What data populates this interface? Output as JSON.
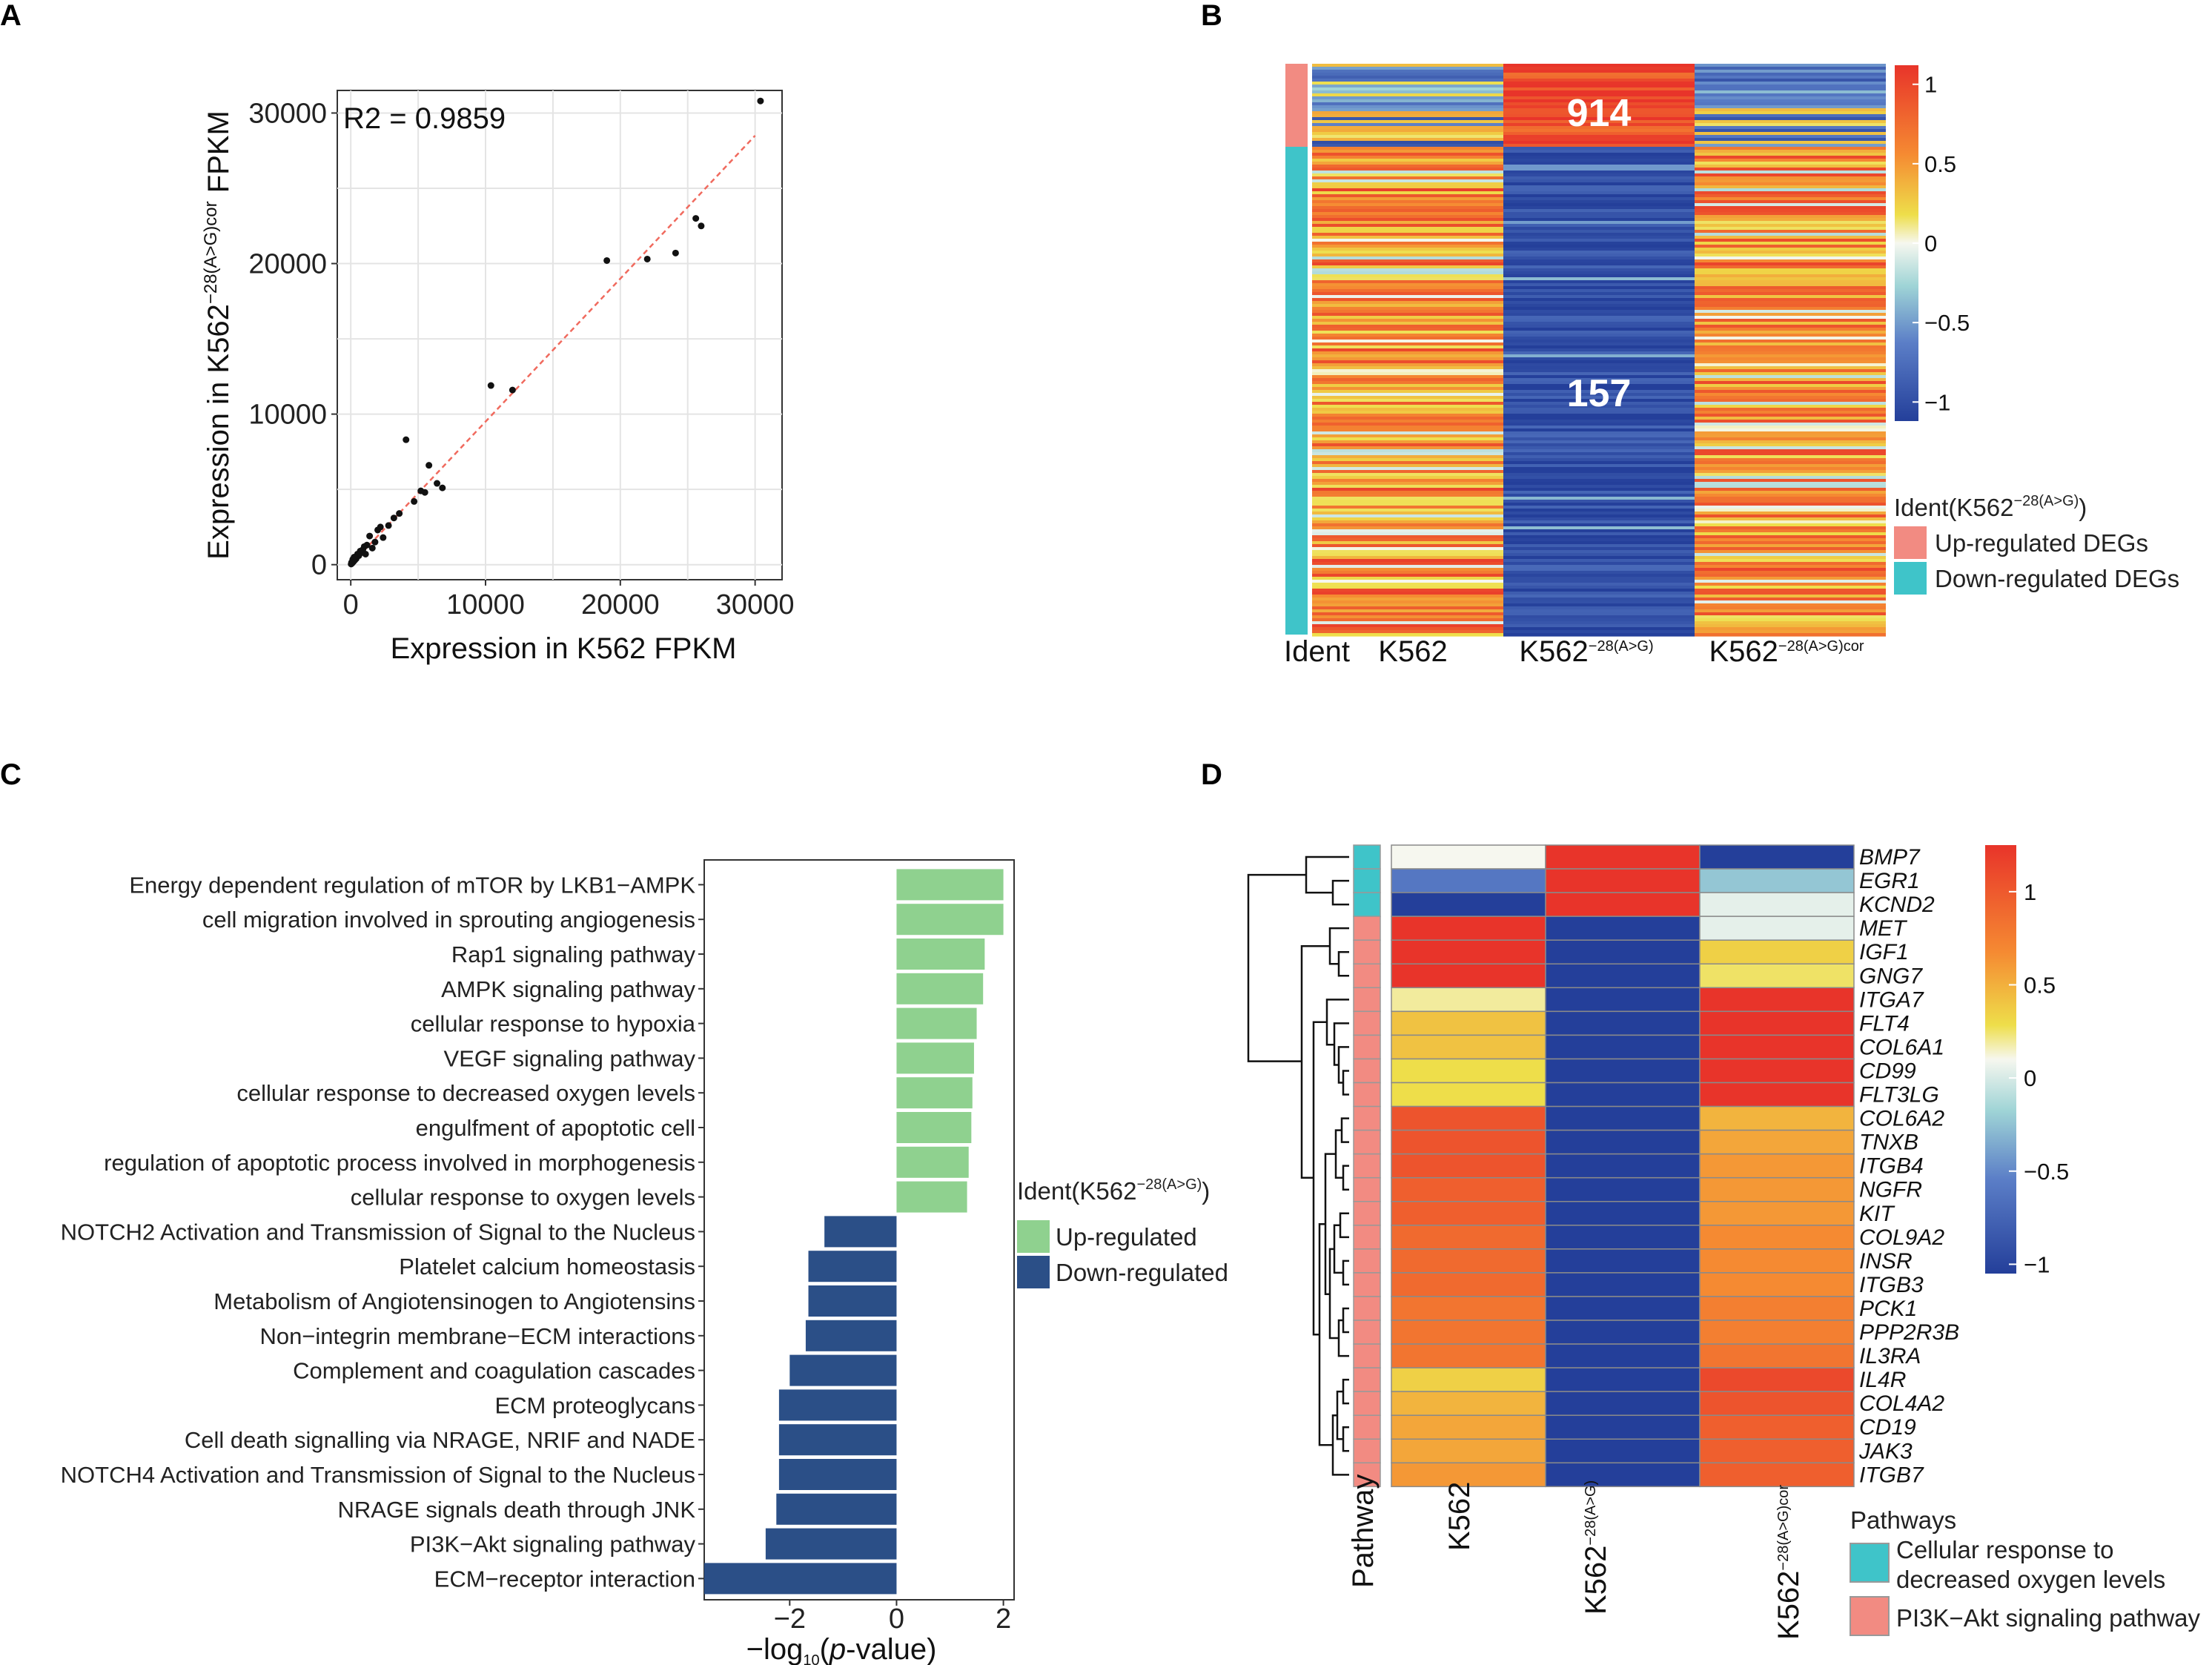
{
  "panel_labels": [
    "A",
    "B",
    "C",
    "D"
  ],
  "chart_data": [
    {
      "panel": "A",
      "type": "scatter",
      "xlabel": "Expression in K562 FPKM",
      "ylabel_prefix": "Expression in K562",
      "ylabel_sup": "−28(A>G)cor",
      "ylabel_suffix": " FPKM",
      "annotation": "R2 = 0.9859",
      "xlim": [
        -1000,
        32000
      ],
      "ylim": [
        -1000,
        31500
      ],
      "xticks": [
        0,
        10000,
        20000,
        30000
      ],
      "yticks": [
        0,
        10000,
        20000,
        30000
      ],
      "tick_labels": [
        "0",
        "10000",
        "20000",
        "30000"
      ],
      "fit_line": {
        "x": [
          0,
          30000
        ],
        "y": [
          0,
          28500
        ]
      },
      "points": [
        [
          30400,
          30800
        ],
        [
          25600,
          23000
        ],
        [
          26000,
          22500
        ],
        [
          24100,
          20700
        ],
        [
          22000,
          20300
        ],
        [
          19000,
          20200
        ],
        [
          10400,
          11900
        ],
        [
          12000,
          11600
        ],
        [
          4100,
          8300
        ],
        [
          5800,
          6600
        ],
        [
          6400,
          5400
        ],
        [
          6800,
          5100
        ],
        [
          5500,
          4800
        ],
        [
          5200,
          4900
        ],
        [
          4700,
          4200
        ],
        [
          3200,
          3100
        ],
        [
          2800,
          2600
        ],
        [
          2200,
          2500
        ],
        [
          2000,
          2300
        ],
        [
          1800,
          1500
        ],
        [
          1400,
          1900
        ],
        [
          1200,
          1300
        ],
        [
          1000,
          1200
        ],
        [
          900,
          1000
        ],
        [
          800,
          800
        ],
        [
          700,
          900
        ],
        [
          600,
          600
        ],
        [
          500,
          700
        ],
        [
          400,
          400
        ],
        [
          300,
          300
        ],
        [
          250,
          500
        ],
        [
          200,
          200
        ],
        [
          150,
          350
        ],
        [
          100,
          100
        ],
        [
          60,
          150
        ],
        [
          30,
          40
        ],
        [
          1600,
          1100
        ],
        [
          2400,
          1800
        ],
        [
          3600,
          3400
        ],
        [
          1100,
          700
        ]
      ]
    },
    {
      "panel": "B",
      "type": "heatmap",
      "columns": [
        "K562",
        "K562",
        "K562"
      ],
      "column_sups": [
        "",
        "−28(A>G)",
        "−28(A>G)cor"
      ],
      "row_annotation_label": "Ident",
      "group_counts": [
        "914",
        "157"
      ],
      "colorbar_ticks": [
        "1",
        "0.5",
        "0",
        "−0.5",
        "−1"
      ],
      "colorbar_values": [
        1,
        0.5,
        0,
        -0.5,
        -1
      ],
      "legend_title": "Ident(K562",
      "legend_title_sup": "−28(A>G)",
      "legend_items": [
        {
          "label": "Up-regulated DEGs",
          "color": "#f28b82"
        },
        {
          "label": "Down-regulated DEGs",
          "color": "#3fc4c9"
        }
      ]
    },
    {
      "panel": "C",
      "type": "bar",
      "orientation": "horizontal",
      "xlabel_prefix": "−log",
      "xlabel_sub": "10",
      "xlabel_mid": "(",
      "xlabel_ital": "p",
      "xlabel_suffix": "-value)",
      "xlim": [
        -3.6,
        2.2
      ],
      "xticks": [
        -2,
        0,
        2
      ],
      "xtick_labels": [
        "−2",
        "0",
        "2"
      ],
      "legend_title": "Ident(K562",
      "legend_title_sup": "−28(A>G)",
      "legend_title_close": ")",
      "series": [
        {
          "name": "Up-regulated",
          "color": "#8fd18f"
        },
        {
          "name": "Down-regulated",
          "color": "#2b4f87"
        }
      ],
      "categories": [
        "Energy dependent regulation of mTOR by LKB1−AMPK",
        "cell migration involved in sprouting angiogenesis",
        "Rap1 signaling pathway",
        "AMPK signaling pathway",
        "cellular response to hypoxia",
        "VEGF signaling pathway",
        "cellular response to decreased oxygen levels",
        "engulfment of apoptotic cell",
        "regulation of apoptotic process involved in morphogenesis",
        "cellular response to oxygen levels",
        "NOTCH2 Activation and Transmission of Signal to the Nucleus",
        "Platelet calcium homeostasis",
        "Metabolism of Angiotensinogen to Angiotensins",
        "Non−integrin membrane−ECM interactions",
        "Complement and coagulation cascades",
        "ECM proteoglycans",
        "Cell death signalling via NRAGE, NRIF and NADE",
        "NOTCH4 Activation and Transmission of Signal to the Nucleus",
        "NRAGE signals death through JNK",
        "PI3K−Akt signaling pathway",
        "ECM−receptor interaction"
      ],
      "values": [
        2.0,
        2.0,
        1.65,
        1.62,
        1.5,
        1.45,
        1.42,
        1.4,
        1.35,
        1.32,
        -1.35,
        -1.65,
        -1.65,
        -1.7,
        -2.0,
        -2.2,
        -2.2,
        -2.2,
        -2.25,
        -2.45,
        -3.6
      ],
      "groups": [
        "up",
        "up",
        "up",
        "up",
        "up",
        "up",
        "up",
        "up",
        "up",
        "up",
        "down",
        "down",
        "down",
        "down",
        "down",
        "down",
        "down",
        "down",
        "down",
        "down",
        "down"
      ]
    },
    {
      "panel": "D",
      "type": "heatmap",
      "columns": [
        "K562",
        "K562",
        "K562"
      ],
      "column_sups": [
        "",
        "−28(A>G)",
        "−28(A>G)cor"
      ],
      "row_annotation_label": "Pathway",
      "genes": [
        "BMP7",
        "EGR1",
        "KCND2",
        "MET",
        "IGF1",
        "GNG7",
        "ITGA7",
        "FLT4",
        "COL6A1",
        "CD99",
        "FLT3LG",
        "COL6A2",
        "TNXB",
        "ITGB4",
        "NGFR",
        "KIT",
        "COL9A2",
        "INSR",
        "ITGB3",
        "PCK1",
        "PPP2R3B",
        "IL3RA",
        "IL4R",
        "COL4A2",
        "CD19",
        "JAK3",
        "ITGB7"
      ],
      "pathway": [
        "oxy",
        "oxy",
        "oxy",
        "pi3k",
        "pi3k",
        "pi3k",
        "pi3k",
        "pi3k",
        "pi3k",
        "pi3k",
        "pi3k",
        "pi3k",
        "pi3k",
        "pi3k",
        "pi3k",
        "pi3k",
        "pi3k",
        "pi3k",
        "pi3k",
        "pi3k",
        "pi3k",
        "pi3k",
        "pi3k",
        "pi3k",
        "pi3k",
        "pi3k",
        "pi3k"
      ],
      "values": [
        [
          0.0,
          1.1,
          -1.0
        ],
        [
          -0.6,
          1.1,
          -0.3
        ],
        [
          -1.0,
          1.1,
          -0.05
        ],
        [
          1.1,
          -1.0,
          -0.05
        ],
        [
          1.1,
          -1.0,
          0.35
        ],
        [
          1.1,
          -1.0,
          0.25
        ],
        [
          0.15,
          -1.0,
          1.05
        ],
        [
          0.4,
          -1.0,
          1.05
        ],
        [
          0.4,
          -1.0,
          1.05
        ],
        [
          0.3,
          -1.0,
          1.05
        ],
        [
          0.3,
          -1.0,
          1.05
        ],
        [
          0.85,
          -1.0,
          0.45
        ],
        [
          0.85,
          -1.0,
          0.5
        ],
        [
          0.85,
          -1.0,
          0.55
        ],
        [
          0.8,
          -1.0,
          0.55
        ],
        [
          0.8,
          -1.0,
          0.55
        ],
        [
          0.75,
          -1.0,
          0.6
        ],
        [
          0.75,
          -1.0,
          0.6
        ],
        [
          0.75,
          -1.0,
          0.6
        ],
        [
          0.7,
          -1.0,
          0.65
        ],
        [
          0.7,
          -1.0,
          0.65
        ],
        [
          0.7,
          -1.0,
          0.7
        ],
        [
          0.35,
          -1.0,
          0.9
        ],
        [
          0.45,
          -1.0,
          0.85
        ],
        [
          0.5,
          -1.0,
          0.8
        ],
        [
          0.5,
          -1.0,
          0.8
        ],
        [
          0.55,
          -1.0,
          0.8
        ]
      ],
      "colorbar_ticks": [
        "1",
        "0.5",
        "0",
        "−0.5",
        "−1"
      ],
      "colorbar_values": [
        1,
        0.5,
        0,
        -0.5,
        -1
      ],
      "legend_title": "Pathways",
      "legend_items": [
        {
          "label1": "Cellular response to",
          "label2": "decreased oxygen levels",
          "color": "#3fc4c9"
        },
        {
          "label1": "PI3K−Akt signaling pathway",
          "label2": "",
          "color": "#f28b82"
        }
      ]
    }
  ]
}
